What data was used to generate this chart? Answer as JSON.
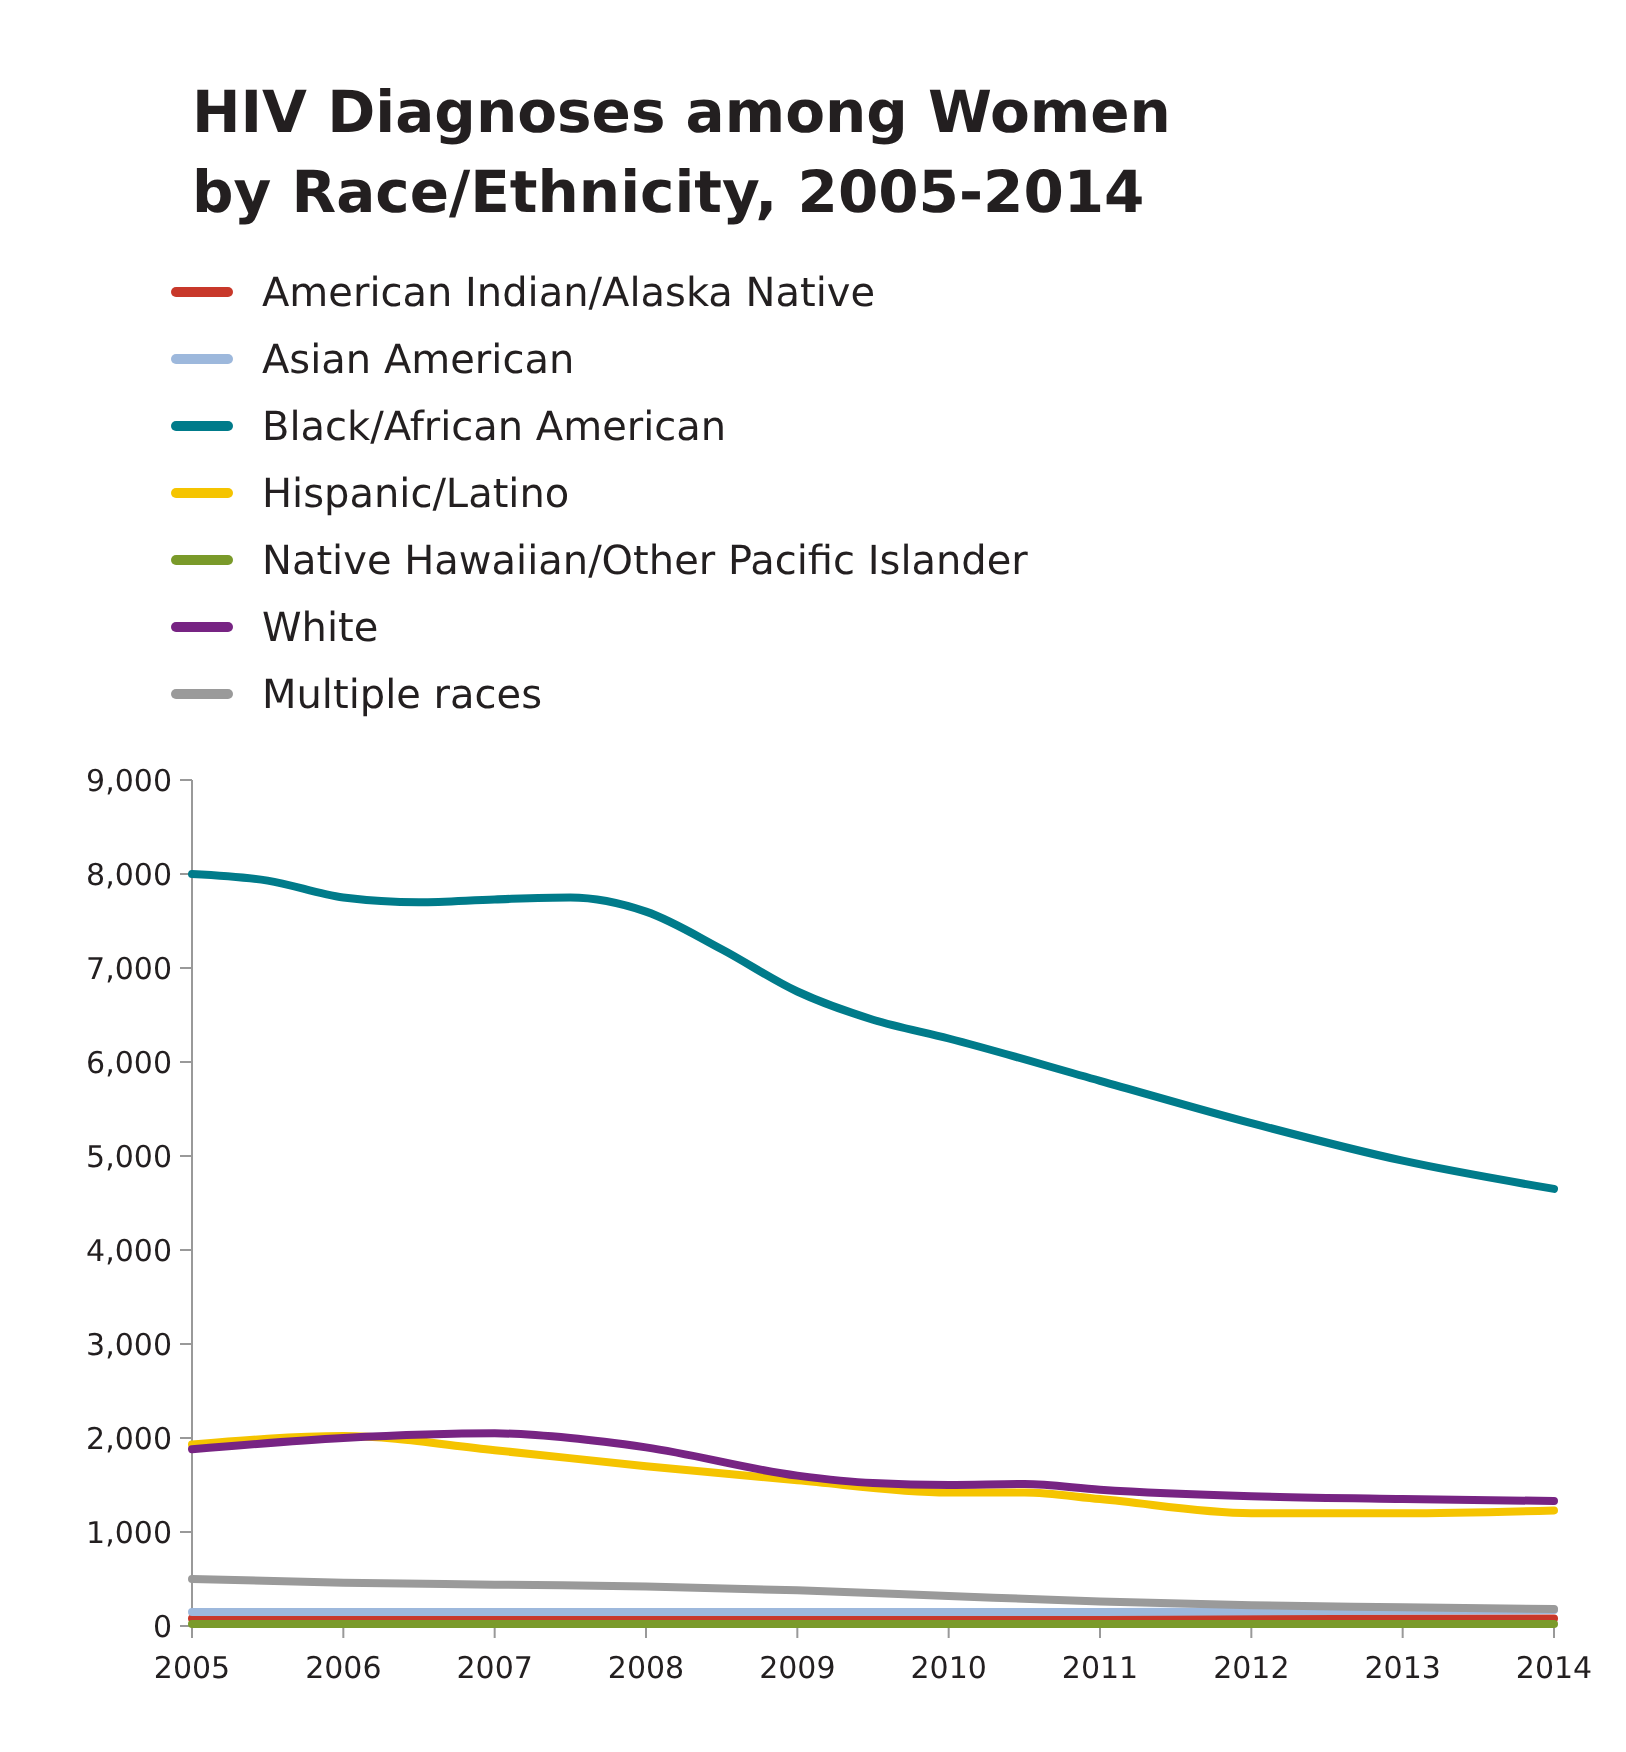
{
  "chart_data": {
    "type": "line",
    "title": "HIV Diagnoses among Women\nby Race/Ethnicity, 2005-2014",
    "legend": "top left",
    "grid": false,
    "marker": "none",
    "line_style": "solid",
    "xlim": [
      2005,
      2014
    ],
    "xticks": [
      2005,
      2006,
      2007,
      2008,
      2009,
      2010,
      2011,
      2012,
      2013,
      2014
    ],
    "ylim": [
      0,
      9000
    ],
    "yticks": [
      {
        "value": 0,
        "label": "0"
      },
      {
        "value": 1000,
        "label": "1,000"
      },
      {
        "value": 2000,
        "label": "2,000"
      },
      {
        "value": 3000,
        "label": "3,000"
      },
      {
        "value": 4000,
        "label": "4,000"
      },
      {
        "value": 5000,
        "label": "5,000"
      },
      {
        "value": 6000,
        "label": "6,000"
      },
      {
        "value": 7000,
        "label": "7,000"
      },
      {
        "value": 8000,
        "label": "8,000"
      },
      {
        "value": 9000,
        "label": "9,000"
      }
    ],
    "series": [
      {
        "name": "American Indian/Alaska Native",
        "color": "#c8382a",
        "x": [
          2005,
          2008,
          2011,
          2014
        ],
        "values": [
          80,
          80,
          80,
          80
        ]
      },
      {
        "name": "Asian American",
        "color": "#9db8dc",
        "x": [
          2005,
          2008,
          2011,
          2014
        ],
        "values": [
          150,
          150,
          150,
          170
        ]
      },
      {
        "name": "Black/African American",
        "color": "#007b8a",
        "x": [
          2005,
          2005.5,
          2006,
          2006.5,
          2007,
          2007.5,
          2008,
          2008.5,
          2009,
          2009.5,
          2010,
          2011,
          2012,
          2013,
          2014
        ],
        "values": [
          8000,
          7930,
          7750,
          7700,
          7730,
          7750,
          7600,
          7200,
          6750,
          6450,
          6250,
          5800,
          5350,
          4950,
          4650
        ]
      },
      {
        "name": "Hispanic/Latino",
        "color": "#f5c400",
        "x": [
          2005,
          2006,
          2007,
          2008,
          2009,
          2010,
          2010.5,
          2011,
          2012,
          2013,
          2014
        ],
        "values": [
          1930,
          2020,
          1870,
          1700,
          1550,
          1420,
          1420,
          1350,
          1200,
          1200,
          1230
        ]
      },
      {
        "name": "Native Hawaiian/Other Pacific Islander",
        "color": "#7a9a2a",
        "x": [
          2005,
          2008,
          2011,
          2014
        ],
        "values": [
          20,
          20,
          20,
          20
        ]
      },
      {
        "name": "White",
        "color": "#772483",
        "x": [
          2005,
          2006,
          2007,
          2007.5,
          2008,
          2009,
          2009.5,
          2010,
          2010.5,
          2011,
          2012,
          2013,
          2014
        ],
        "values": [
          1880,
          2000,
          2050,
          2000,
          1900,
          1600,
          1520,
          1500,
          1510,
          1450,
          1380,
          1350,
          1330
        ]
      },
      {
        "name": "Multiple races",
        "color": "#9a9a9a",
        "x": [
          2005,
          2006,
          2007,
          2008,
          2009,
          2010,
          2011,
          2012,
          2013,
          2014
        ],
        "values": [
          500,
          460,
          440,
          420,
          380,
          320,
          260,
          220,
          200,
          180
        ]
      }
    ]
  }
}
